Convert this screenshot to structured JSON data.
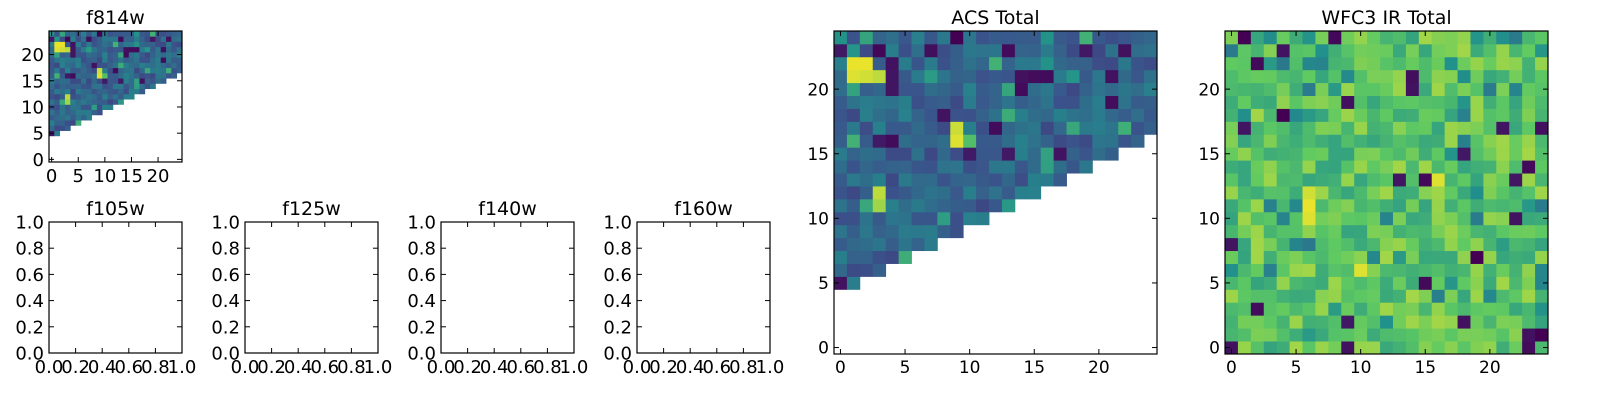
{
  "figure": {
    "panels": [
      {
        "id": "f814w",
        "title": "f814w",
        "type": "heatmap",
        "xlim": [
          -0.5,
          24.5
        ],
        "ylim": [
          -0.5,
          24.5
        ],
        "xticks": [
          0,
          5,
          10,
          15,
          20
        ],
        "yticks": [
          0,
          5,
          10,
          15,
          20
        ],
        "xtick_labels": [
          "0",
          "5",
          "10",
          "15",
          "20"
        ],
        "ytick_labels": [
          "0",
          "5",
          "10",
          "15",
          "20"
        ],
        "source": "acs"
      },
      {
        "id": "f105w",
        "title": "f105w",
        "type": "empty",
        "xlim": [
          0,
          1
        ],
        "ylim": [
          0,
          1
        ],
        "xticks": [
          0,
          0.2,
          0.4,
          0.6,
          0.8,
          1.0
        ],
        "yticks": [
          0,
          0.2,
          0.4,
          0.6,
          0.8,
          1.0
        ],
        "xtick_labels": [
          "0.0",
          "0.2",
          "0.4",
          "0.6",
          "0.8",
          "1.0"
        ],
        "ytick_labels": [
          "0.0",
          "0.2",
          "0.4",
          "0.6",
          "0.8",
          "1.0"
        ]
      },
      {
        "id": "f125w",
        "title": "f125w",
        "type": "empty",
        "xlim": [
          0,
          1
        ],
        "ylim": [
          0,
          1
        ],
        "xticks": [
          0,
          0.2,
          0.4,
          0.6,
          0.8,
          1.0
        ],
        "yticks": [
          0,
          0.2,
          0.4,
          0.6,
          0.8,
          1.0
        ],
        "xtick_labels": [
          "0.0",
          "0.2",
          "0.4",
          "0.6",
          "0.8",
          "1.0"
        ],
        "ytick_labels": [
          "0.0",
          "0.2",
          "0.4",
          "0.6",
          "0.8",
          "1.0"
        ]
      },
      {
        "id": "f140w",
        "title": "f140w",
        "type": "empty",
        "xlim": [
          0,
          1
        ],
        "ylim": [
          0,
          1
        ],
        "xticks": [
          0,
          0.2,
          0.4,
          0.6,
          0.8,
          1.0
        ],
        "yticks": [
          0,
          0.2,
          0.4,
          0.6,
          0.8,
          1.0
        ],
        "xtick_labels": [
          "0.0",
          "0.2",
          "0.4",
          "0.6",
          "0.8",
          "1.0"
        ],
        "ytick_labels": [
          "0.0",
          "0.2",
          "0.4",
          "0.6",
          "0.8",
          "1.0"
        ]
      },
      {
        "id": "f160w",
        "title": "f160w",
        "type": "empty",
        "xlim": [
          0,
          1
        ],
        "ylim": [
          0,
          1
        ],
        "xticks": [
          0,
          0.2,
          0.4,
          0.6,
          0.8,
          1.0
        ],
        "yticks": [
          0,
          0.2,
          0.4,
          0.6,
          0.8,
          1.0
        ],
        "xtick_labels": [
          "0.0",
          "0.2",
          "0.4",
          "0.6",
          "0.8",
          "1.0"
        ],
        "ytick_labels": [
          "0.0",
          "0.2",
          "0.4",
          "0.6",
          "0.8",
          "1.0"
        ]
      },
      {
        "id": "acs-total",
        "title": "ACS Total",
        "type": "heatmap",
        "xlim": [
          -0.5,
          24.5
        ],
        "ylim": [
          -0.5,
          24.5
        ],
        "xticks": [
          0,
          5,
          10,
          15,
          20
        ],
        "yticks": [
          0,
          5,
          10,
          15,
          20
        ],
        "xtick_labels": [
          "0",
          "5",
          "10",
          "15",
          "20"
        ],
        "ytick_labels": [
          "0",
          "5",
          "10",
          "15",
          "20"
        ],
        "source": "acs"
      },
      {
        "id": "wfc3-ir-total",
        "title": "WFC3 IR Total",
        "type": "heatmap",
        "xlim": [
          -0.5,
          24.5
        ],
        "ylim": [
          -0.5,
          24.5
        ],
        "xticks": [
          0,
          5,
          10,
          15,
          20
        ],
        "yticks": [
          0,
          5,
          10,
          15,
          20
        ],
        "xtick_labels": [
          "0",
          "5",
          "10",
          "15",
          "20"
        ],
        "ytick_labels": [
          "0",
          "5",
          "10",
          "15",
          "20"
        ],
        "source": "ir"
      }
    ]
  },
  "chart_data": [
    {
      "type": "heatmap",
      "title": "ACS Total",
      "grid_size": [
        25,
        25
      ],
      "colormap": "viridis",
      "colormap_stops": [
        "#440154",
        "#3b528b",
        "#21918c",
        "#5ec962",
        "#fde725"
      ],
      "mask_rule": "masked (white) where y < 0.48*x + 4.5",
      "pixel_model": "values in [0,1]; background ~0.3 (blue) with random variation",
      "hotspots": [
        {
          "x": 1.5,
          "y": 22.0,
          "value": 0.97,
          "label": "bright blob"
        },
        {
          "x": 9.0,
          "y": 16.5,
          "value": 0.9
        },
        {
          "x": 3.0,
          "y": 12.0,
          "value": 0.9
        },
        {
          "x": 8.0,
          "y": 8.0,
          "value": 0.0
        }
      ]
    },
    {
      "type": "heatmap",
      "title": "f814w",
      "note": "same data as ACS Total at smaller scale",
      "grid_size": [
        25,
        25
      ],
      "colormap": "viridis"
    },
    {
      "type": "heatmap",
      "title": "WFC3 IR Total",
      "grid_size": [
        25,
        25
      ],
      "colormap": "viridis",
      "pixel_model": "values in [0,1]; mostly green-yellow (~0.6-0.85) with scattered dark pixels",
      "notable_cells": [
        {
          "x": 6,
          "y": 11,
          "value": 0.97
        },
        {
          "x": 10,
          "y": 6,
          "value": 0.95
        },
        {
          "x": 16,
          "y": 13,
          "value": 0.95
        },
        {
          "x": 4,
          "y": 18,
          "value": 0.0
        }
      ]
    }
  ]
}
